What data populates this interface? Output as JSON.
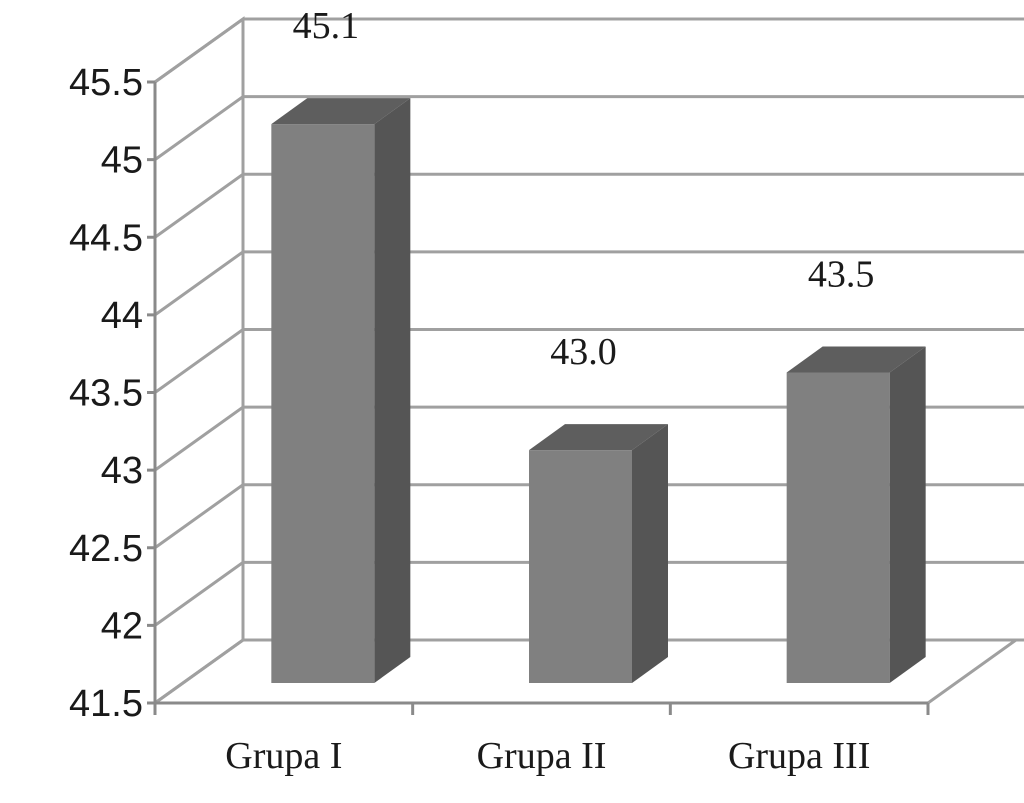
{
  "chart_data": {
    "type": "bar",
    "categories": [
      "Grupa I",
      "Grupa II",
      "Grupa III"
    ],
    "values": [
      45.1,
      43.0,
      43.5
    ],
    "data_labels": [
      "45.1",
      "43.0",
      "43.5"
    ],
    "ylim": [
      41.5,
      45.5
    ],
    "yticks": [
      "41.5",
      "42",
      "42.5",
      "43",
      "43.5",
      "44",
      "44.5",
      "45",
      "45.5"
    ],
    "grid": true,
    "style": "3d-column",
    "colors": {
      "bar_front": "#808080",
      "bar_side": "#555555",
      "bar_top": "#5e5e5e",
      "grid": "#a0a0a0",
      "axis": "#8a8a8a"
    }
  }
}
